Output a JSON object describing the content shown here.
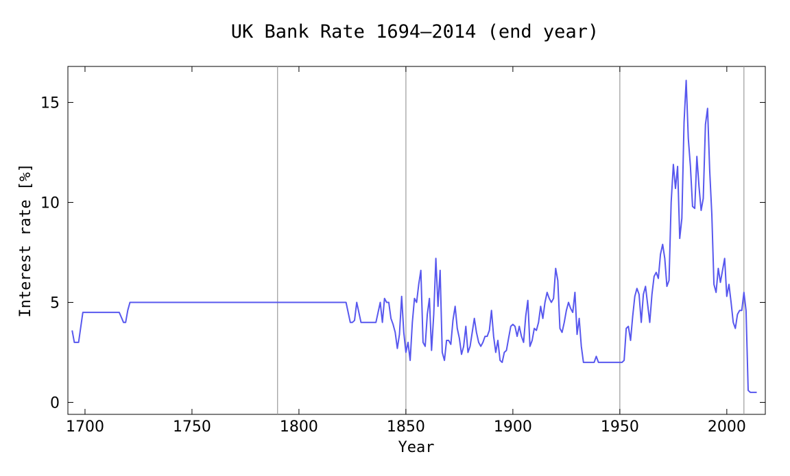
{
  "chart_data": {
    "type": "line",
    "title": "UK Bank Rate 1694–2014 (end year)",
    "xlabel": "Year",
    "ylabel": "Interest rate [%]",
    "xlim": [
      1692,
      2018
    ],
    "ylim": [
      -0.6,
      16.8
    ],
    "x_ticks": [
      1700,
      1750,
      1800,
      1850,
      1900,
      1950,
      2000
    ],
    "y_ticks": [
      0,
      5,
      10,
      15
    ],
    "vertical_reference_lines": [
      1790,
      1850,
      1950,
      2008
    ],
    "grid": false,
    "series_color": "#5757ee",
    "reference_line_color": "#999999",
    "series": [
      {
        "points": [
          [
            1694,
            3.6
          ],
          [
            1695,
            3.0
          ],
          [
            1697,
            3.0
          ],
          [
            1699,
            4.5
          ],
          [
            1716,
            4.5
          ],
          [
            1718,
            4.0
          ],
          [
            1719,
            4.0
          ],
          [
            1720,
            4.6
          ],
          [
            1721,
            5.0
          ],
          [
            1822,
            5.0
          ],
          [
            1824,
            4.0
          ],
          [
            1825,
            4.0
          ],
          [
            1826,
            4.1
          ],
          [
            1827,
            5.0
          ],
          [
            1829,
            4.0
          ],
          [
            1836,
            4.0
          ],
          [
            1838,
            5.0
          ],
          [
            1839,
            4.0
          ],
          [
            1840,
            5.2
          ],
          [
            1841,
            5.0
          ],
          [
            1842,
            5.0
          ],
          [
            1843,
            4.2
          ],
          [
            1844,
            3.9
          ],
          [
            1845,
            3.5
          ],
          [
            1846,
            2.7
          ],
          [
            1847,
            3.4
          ],
          [
            1848,
            5.3
          ],
          [
            1849,
            3.5
          ],
          [
            1850,
            2.5
          ],
          [
            1851,
            3.0
          ],
          [
            1852,
            2.1
          ],
          [
            1853,
            4.0
          ],
          [
            1854,
            5.2
          ],
          [
            1855,
            5.0
          ],
          [
            1856,
            5.9
          ],
          [
            1857,
            6.6
          ],
          [
            1858,
            3.0
          ],
          [
            1859,
            2.8
          ],
          [
            1860,
            4.4
          ],
          [
            1861,
            5.2
          ],
          [
            1862,
            2.6
          ],
          [
            1863,
            4.4
          ],
          [
            1864,
            7.2
          ],
          [
            1865,
            4.8
          ],
          [
            1866,
            6.6
          ],
          [
            1867,
            2.5
          ],
          [
            1868,
            2.1
          ],
          [
            1869,
            3.1
          ],
          [
            1870,
            3.1
          ],
          [
            1871,
            2.9
          ],
          [
            1872,
            4.1
          ],
          [
            1873,
            4.8
          ],
          [
            1874,
            3.7
          ],
          [
            1875,
            3.2
          ],
          [
            1876,
            2.4
          ],
          [
            1877,
            2.8
          ],
          [
            1878,
            3.8
          ],
          [
            1879,
            2.5
          ],
          [
            1880,
            2.8
          ],
          [
            1881,
            3.5
          ],
          [
            1882,
            4.2
          ],
          [
            1883,
            3.5
          ],
          [
            1884,
            3.0
          ],
          [
            1885,
            2.8
          ],
          [
            1886,
            3.0
          ],
          [
            1887,
            3.3
          ],
          [
            1888,
            3.3
          ],
          [
            1889,
            3.6
          ],
          [
            1890,
            4.6
          ],
          [
            1891,
            3.3
          ],
          [
            1892,
            2.5
          ],
          [
            1893,
            3.1
          ],
          [
            1894,
            2.1
          ],
          [
            1895,
            2.0
          ],
          [
            1896,
            2.5
          ],
          [
            1897,
            2.6
          ],
          [
            1898,
            3.2
          ],
          [
            1899,
            3.8
          ],
          [
            1900,
            3.9
          ],
          [
            1901,
            3.8
          ],
          [
            1902,
            3.3
          ],
          [
            1903,
            3.8
          ],
          [
            1904,
            3.3
          ],
          [
            1905,
            3.0
          ],
          [
            1906,
            4.3
          ],
          [
            1907,
            5.1
          ],
          [
            1908,
            2.8
          ],
          [
            1909,
            3.1
          ],
          [
            1910,
            3.7
          ],
          [
            1911,
            3.6
          ],
          [
            1912,
            4.0
          ],
          [
            1913,
            4.8
          ],
          [
            1914,
            4.2
          ],
          [
            1915,
            5.0
          ],
          [
            1916,
            5.5
          ],
          [
            1917,
            5.2
          ],
          [
            1918,
            5.0
          ],
          [
            1919,
            5.2
          ],
          [
            1920,
            6.7
          ],
          [
            1921,
            6.1
          ],
          [
            1922,
            3.7
          ],
          [
            1923,
            3.5
          ],
          [
            1924,
            4.0
          ],
          [
            1925,
            4.6
          ],
          [
            1926,
            5.0
          ],
          [
            1927,
            4.7
          ],
          [
            1928,
            4.5
          ],
          [
            1929,
            5.5
          ],
          [
            1930,
            3.4
          ],
          [
            1931,
            4.2
          ],
          [
            1932,
            2.8
          ],
          [
            1933,
            2.0
          ],
          [
            1938,
            2.0
          ],
          [
            1939,
            2.3
          ],
          [
            1940,
            2.0
          ],
          [
            1951,
            2.0
          ],
          [
            1952,
            2.1
          ],
          [
            1953,
            3.7
          ],
          [
            1954,
            3.8
          ],
          [
            1955,
            3.1
          ],
          [
            1956,
            4.3
          ],
          [
            1957,
            5.3
          ],
          [
            1958,
            5.7
          ],
          [
            1959,
            5.4
          ],
          [
            1960,
            4.0
          ],
          [
            1961,
            5.4
          ],
          [
            1962,
            5.8
          ],
          [
            1963,
            4.9
          ],
          [
            1964,
            4.0
          ],
          [
            1965,
            5.4
          ],
          [
            1966,
            6.3
          ],
          [
            1967,
            6.5
          ],
          [
            1968,
            6.2
          ],
          [
            1969,
            7.4
          ],
          [
            1970,
            7.9
          ],
          [
            1971,
            7.2
          ],
          [
            1972,
            5.8
          ],
          [
            1973,
            6.1
          ],
          [
            1974,
            10.0
          ],
          [
            1975,
            11.9
          ],
          [
            1976,
            10.7
          ],
          [
            1977,
            11.8
          ],
          [
            1978,
            8.2
          ],
          [
            1979,
            9.2
          ],
          [
            1980,
            14.0
          ],
          [
            1981,
            16.1
          ],
          [
            1982,
            13.2
          ],
          [
            1983,
            11.8
          ],
          [
            1984,
            9.8
          ],
          [
            1985,
            9.7
          ],
          [
            1986,
            12.3
          ],
          [
            1987,
            10.8
          ],
          [
            1988,
            9.6
          ],
          [
            1989,
            10.2
          ],
          [
            1990,
            13.9
          ],
          [
            1991,
            14.7
          ],
          [
            1992,
            11.6
          ],
          [
            1993,
            9.4
          ],
          [
            1994,
            5.9
          ],
          [
            1995,
            5.5
          ],
          [
            1996,
            6.7
          ],
          [
            1997,
            6.0
          ],
          [
            1998,
            6.6
          ],
          [
            1999,
            7.2
          ],
          [
            2000,
            5.3
          ],
          [
            2001,
            5.9
          ],
          [
            2002,
            5.0
          ],
          [
            2003,
            4.0
          ],
          [
            2004,
            3.7
          ],
          [
            2005,
            4.4
          ],
          [
            2006,
            4.6
          ],
          [
            2007,
            4.6
          ],
          [
            2008,
            5.5
          ],
          [
            2009,
            4.6
          ],
          [
            2010,
            0.6
          ],
          [
            2011,
            0.5
          ],
          [
            2014,
            0.5
          ]
        ]
      }
    ]
  }
}
